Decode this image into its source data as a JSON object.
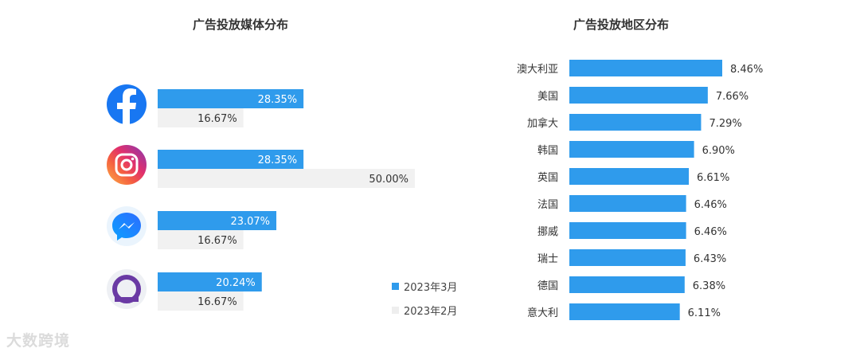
{
  "colors": {
    "march": "#2f9bec",
    "february": "#f1f1f1",
    "text": "#333333"
  },
  "watermark": {
    "text": "大数跨境"
  },
  "chart_data": [
    {
      "type": "bar",
      "orientation": "horizontal",
      "title": "广告投放媒体分布",
      "categories": [
        "facebook-icon",
        "instagram-icon",
        "messenger-icon",
        "quora-icon"
      ],
      "series": [
        {
          "name": "2023年3月",
          "values": [
            28.35,
            28.35,
            23.07,
            20.24
          ],
          "labels": [
            "28.35%",
            "28.35%",
            "23.07%",
            "20.24%"
          ],
          "color": "#2f9bec"
        },
        {
          "name": "2023年2月",
          "values": [
            16.67,
            50.0,
            16.67,
            16.67
          ],
          "labels": [
            "16.67%",
            "50.00%",
            "16.67%",
            "16.67%"
          ],
          "color": "#f1f1f1"
        }
      ],
      "legend": "bottom-right"
    },
    {
      "type": "bar",
      "orientation": "horizontal",
      "title": "广告投放地区分布",
      "categories": [
        "澳大利亚",
        "美国",
        "加拿大",
        "韩国",
        "英国",
        "法国",
        "挪威",
        "瑞士",
        "德国",
        "意大利"
      ],
      "values": [
        8.46,
        7.66,
        7.29,
        6.9,
        6.61,
        6.46,
        6.46,
        6.43,
        6.38,
        6.11
      ],
      "labels": [
        "8.46%",
        "7.66%",
        "7.29%",
        "6.90%",
        "6.61%",
        "6.46%",
        "6.46%",
        "6.43%",
        "6.38%",
        "6.11%"
      ],
      "color": "#2f9bec"
    }
  ]
}
